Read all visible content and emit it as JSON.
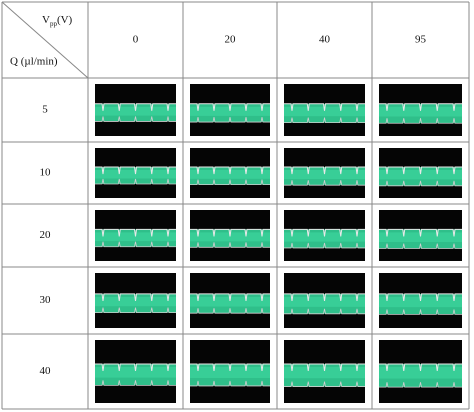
{
  "table": {
    "corner": {
      "column_label_main": "V",
      "column_label_sub": "pp",
      "column_label_unit": "(V)",
      "row_label": "Q (µl/min)"
    },
    "columns": [
      "0",
      "20",
      "40",
      "95"
    ],
    "rows": [
      "5",
      "10",
      "20",
      "30",
      "40"
    ]
  }
}
